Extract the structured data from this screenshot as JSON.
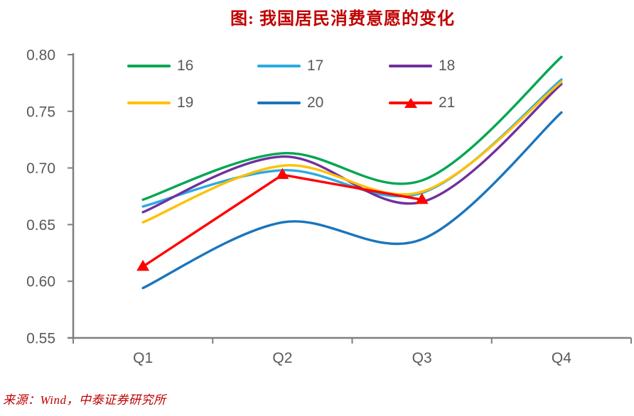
{
  "header": {
    "title": "图: 我国居民消费意愿的变化"
  },
  "footer": {
    "source": "来源：Wind，中泰证券研究所"
  },
  "colors": {
    "title_red": "#C00000",
    "axis_gray": "#7F7F7F",
    "label_gray": "#595959"
  },
  "chart_data": {
    "type": "line",
    "title": "图: 我国居民消费意愿的变化",
    "categories": [
      "Q1",
      "Q2",
      "Q3",
      "Q4"
    ],
    "y_ticks": [
      0.8,
      0.75,
      0.7,
      0.65,
      0.6,
      0.55
    ],
    "y_tick_labels": [
      "0.80",
      "0.75",
      "0.70",
      "0.65",
      "0.60",
      "0.55"
    ],
    "ylim": [
      0.55,
      0.8
    ],
    "grid": false,
    "legend_position": "top-left, 2 rows x 3 columns",
    "series": [
      {
        "name": "16",
        "color": "#00A651",
        "smooth": true,
        "marker": "none",
        "values": [
          0.672,
          0.713,
          0.689,
          0.798
        ]
      },
      {
        "name": "17",
        "color": "#29ABE2",
        "smooth": true,
        "marker": "none",
        "values": [
          0.666,
          0.698,
          0.678,
          0.778
        ]
      },
      {
        "name": "18",
        "color": "#7030A0",
        "smooth": true,
        "marker": "none",
        "values": [
          0.661,
          0.71,
          0.67,
          0.774
        ]
      },
      {
        "name": "19",
        "color": "#FFC000",
        "smooth": true,
        "marker": "none",
        "values": [
          0.652,
          0.702,
          0.679,
          0.776
        ]
      },
      {
        "name": "20",
        "color": "#1B75BC",
        "smooth": true,
        "marker": "none",
        "values": [
          0.594,
          0.652,
          0.637,
          0.749
        ]
      },
      {
        "name": "21",
        "color": "#FF0000",
        "smooth": false,
        "marker": "triangle",
        "values": [
          0.613,
          0.694,
          0.672
        ]
      }
    ],
    "source": "来源：Wind，中泰证券研究所"
  }
}
